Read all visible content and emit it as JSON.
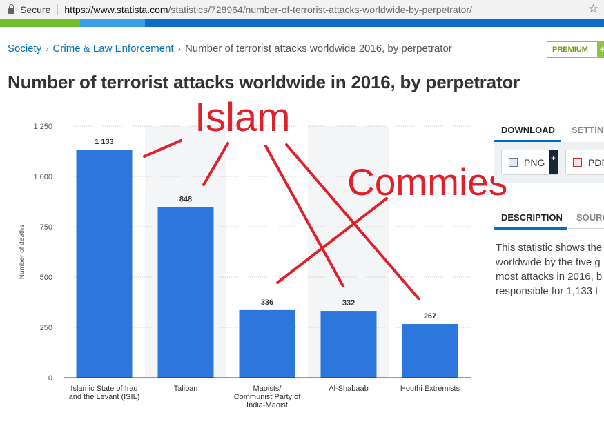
{
  "browser": {
    "secure_label": "Secure",
    "url_domain": "https://www.statista.com",
    "url_path": "/statistics/728964/number-of-terrorist-attacks-worldwide-by-perpetrator/"
  },
  "breadcrumb": {
    "items": [
      "Society",
      "Crime & Law Enforcement"
    ],
    "current": "Number of terrorist attacks worldwide 2016, by perpetrator"
  },
  "premium_label": "PREMIUM",
  "page_title": "Number of terrorist attacks worldwide in 2016, by perpetrator",
  "right_panel": {
    "tab_download": "DOWNLOAD",
    "tab_settings": "SETTING",
    "png_label": "PNG",
    "pdf_label": "PDF",
    "tab_description": "DESCRIPTION",
    "tab_source": "SOURC",
    "description_lines": [
      "This statistic shows the",
      "worldwide by the five g",
      "most attacks in 2016, b",
      "responsible for 1,133 t"
    ]
  },
  "colors": {
    "bar": "#2b77dc",
    "accent": "#0071bc",
    "annotation": "#e0202a",
    "premium": "#8cc63f"
  },
  "chart_data": {
    "type": "bar",
    "categories": [
      [
        "Islamic State of Iraq",
        "and the Levant (ISIL)"
      ],
      [
        "Taliban"
      ],
      [
        "Maoists/",
        "Communist Party of",
        "India-Maoist"
      ],
      [
        "Al-Shabaab"
      ],
      [
        "Houthi Extremists"
      ]
    ],
    "values": [
      1133,
      848,
      336,
      332,
      267
    ],
    "value_labels": [
      "1 133",
      "848",
      "336",
      "332",
      "267"
    ],
    "ylabel": "Number of deaths",
    "ylim": [
      0,
      1250
    ],
    "yticks": [
      0,
      250,
      500,
      750,
      1000,
      1250
    ],
    "ytick_labels": [
      "0",
      "250",
      "500",
      "750",
      "1 000",
      "1 250"
    ],
    "grid": true,
    "annotations": [
      "Islam",
      "Commies"
    ]
  }
}
